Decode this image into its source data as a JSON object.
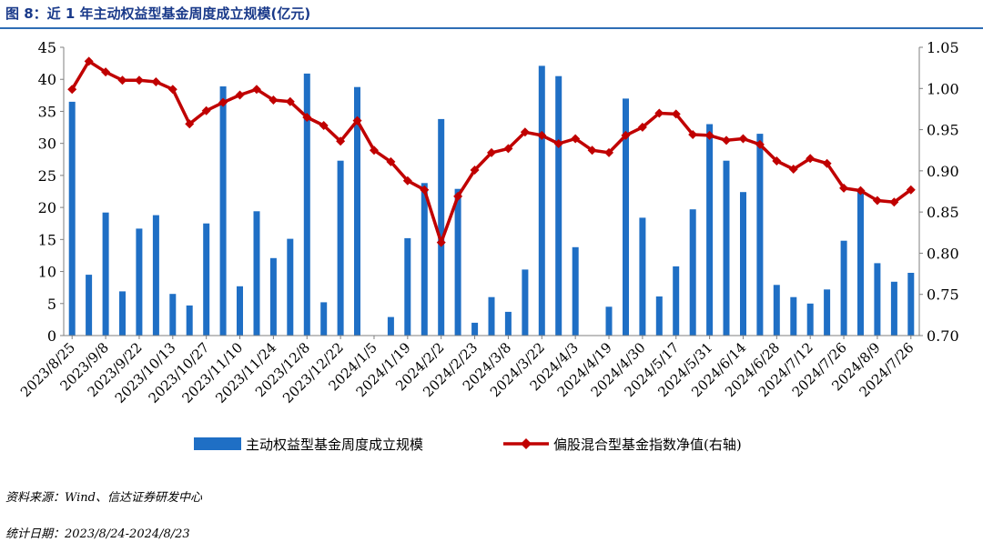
{
  "figure": {
    "title": "图 8：近 1 年主动权益型基金周度成立规模(亿元)",
    "source_note": "资料来源：Wind、信达证券研发中心",
    "date_note": "统计日期：2023/8/24-2024/8/23"
  },
  "colors": {
    "bar": "#1f6fc5",
    "line": "#c00000",
    "title": "#1a3a8a",
    "axis": "#7f7f7f"
  },
  "chart_data": {
    "type": "bar+line",
    "left_axis": {
      "min": 0,
      "max": 45,
      "step": 5,
      "ticks": [
        "0",
        "5",
        "10",
        "15",
        "20",
        "25",
        "30",
        "35",
        "40",
        "45"
      ]
    },
    "right_axis": {
      "min": 0.7,
      "max": 1.05,
      "step": 0.05,
      "ticks": [
        "0.70",
        "0.75",
        "0.80",
        "0.85",
        "0.90",
        "0.95",
        "1.00",
        "1.05"
      ]
    },
    "x_tick_labels": [
      "2023/8/25",
      "2023/9/8",
      "2023/9/22",
      "2023/10/13",
      "2023/10/27",
      "2023/11/10",
      "2023/11/24",
      "2023/12/8",
      "2023/12/22",
      "2024/1/5",
      "2024/1/19",
      "2024/2/2",
      "2024/2/23",
      "2024/3/8",
      "2024/3/22",
      "2024/4/3",
      "2024/4/19",
      "2024/4/30",
      "2024/5/17",
      "2024/5/31",
      "2024/6/14",
      "2024/6/28",
      "2024/7/12",
      "2024/7/26",
      "2024/8/9",
      "2024/7/26"
    ],
    "legend": [
      "主动权益型基金周度成立规模",
      "偏股混合型基金指数净值(右轴)"
    ],
    "legend_position": "bottom",
    "series": [
      {
        "name": "主动权益型基金周度成立规模",
        "type": "bar",
        "axis": "left",
        "values": [
          36.5,
          9.5,
          19.2,
          6.9,
          16.7,
          18.8,
          6.5,
          4.7,
          17.5,
          38.9,
          7.7,
          19.4,
          12.1,
          15.1,
          40.9,
          5.2,
          27.3,
          38.8,
          0,
          2.9,
          15.2,
          23.8,
          33.8,
          22.9,
          2.0,
          6.0,
          3.7,
          10.3,
          42.1,
          40.5,
          13.8,
          0,
          4.5,
          37.0,
          18.4,
          6.1,
          10.8,
          19.7,
          33.0,
          27.3,
          22.4,
          31.5,
          7.9,
          6.0,
          5.0,
          7.2,
          14.8,
          22.5,
          11.3,
          8.4,
          9.8
        ]
      },
      {
        "name": "偏股混合型基金指数净值(右轴)",
        "type": "line",
        "axis": "right",
        "values": [
          0.999,
          1.033,
          1.02,
          1.01,
          1.01,
          1.008,
          0.999,
          0.957,
          0.973,
          0.983,
          0.992,
          0.999,
          0.986,
          0.984,
          0.965,
          0.955,
          0.936,
          0.961,
          0.925,
          0.911,
          0.888,
          0.877,
          0.813,
          0.869,
          0.901,
          0.922,
          0.927,
          0.947,
          0.943,
          0.933,
          0.939,
          0.925,
          0.922,
          0.943,
          0.953,
          0.97,
          0.969,
          0.944,
          0.943,
          0.937,
          0.939,
          0.932,
          0.912,
          0.902,
          0.915,
          0.909,
          0.879,
          0.876,
          0.864,
          0.862,
          0.877
        ]
      }
    ]
  }
}
